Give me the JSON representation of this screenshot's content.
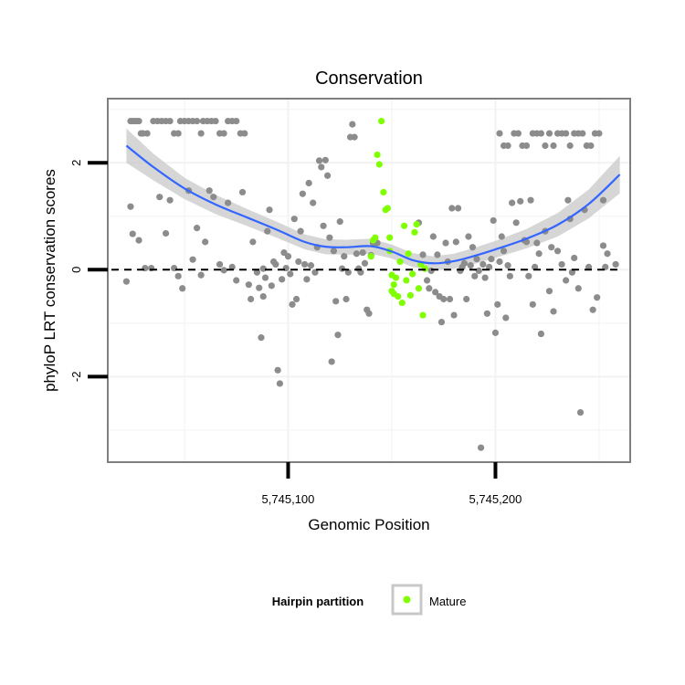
{
  "chart_data": {
    "type": "scatter",
    "title": "Conservation",
    "xlabel": "Genomic Position",
    "ylabel": "phyloP LRT conservation scores",
    "xlim": [
      5745013,
      5745265
    ],
    "ylim": [
      -3.6,
      3.2
    ],
    "x_ticks": [
      {
        "value": 5745100,
        "label": "5,745,100"
      },
      {
        "value": 5745200,
        "label": "5,745,200"
      }
    ],
    "y_ticks": [
      {
        "value": 2,
        "label": "2"
      },
      {
        "value": 0,
        "label": "0"
      },
      {
        "value": -2,
        "label": "-2"
      }
    ],
    "grid": true,
    "reference_line": {
      "y": 0,
      "style": "dashed"
    },
    "smooth_line_color": "#3366ff",
    "confidence_band_color": "#c8c8c8",
    "background_points_color": "#8c8c8c",
    "legend": {
      "title": "Hairpin partition",
      "position": "bottom",
      "entries": [
        {
          "label": "Mature",
          "color": "#7fff00"
        }
      ]
    },
    "series": [
      {
        "name": "",
        "color": "#8c8c8c",
        "points": [
          [
            5745024,
            2.78
          ],
          [
            5745025,
            2.78
          ],
          [
            5745026,
            2.78
          ],
          [
            5745027,
            2.78
          ],
          [
            5745028,
            2.78
          ],
          [
            5745029,
            2.55
          ],
          [
            5745030,
            2.55
          ],
          [
            5745032,
            2.55
          ],
          [
            5745035,
            2.78
          ],
          [
            5745037,
            2.78
          ],
          [
            5745039,
            2.78
          ],
          [
            5745041,
            2.78
          ],
          [
            5745043,
            2.78
          ],
          [
            5745045,
            2.55
          ],
          [
            5745047,
            2.55
          ],
          [
            5745048,
            2.78
          ],
          [
            5745050,
            2.78
          ],
          [
            5745052,
            2.78
          ],
          [
            5745054,
            2.78
          ],
          [
            5745056,
            2.78
          ],
          [
            5745058,
            2.55
          ],
          [
            5745059,
            2.78
          ],
          [
            5745061,
            2.78
          ],
          [
            5745063,
            2.78
          ],
          [
            5745065,
            2.78
          ],
          [
            5745067,
            2.55
          ],
          [
            5745069,
            2.55
          ],
          [
            5745071,
            2.78
          ],
          [
            5745073,
            2.78
          ],
          [
            5745075,
            2.78
          ],
          [
            5745077,
            2.55
          ],
          [
            5745079,
            2.55
          ],
          [
            5745024,
            1.18
          ],
          [
            5745025,
            0.67
          ],
          [
            5745028,
            0.55
          ],
          [
            5745031,
            0.03
          ],
          [
            5745034,
            0.03
          ],
          [
            5745022,
            -0.22
          ],
          [
            5745038,
            1.36
          ],
          [
            5745041,
            0.68
          ],
          [
            5745043,
            1.3
          ],
          [
            5745045,
            0.03
          ],
          [
            5745047,
            -0.12
          ],
          [
            5745049,
            -0.35
          ],
          [
            5745052,
            1.48
          ],
          [
            5745054,
            0.19
          ],
          [
            5745056,
            0.78
          ],
          [
            5745058,
            -0.1
          ],
          [
            5745060,
            0.52
          ],
          [
            5745062,
            1.48
          ],
          [
            5745064,
            1.36
          ],
          [
            5745067,
            0.1
          ],
          [
            5745069,
            -0.01
          ],
          [
            5745071,
            1.25
          ],
          [
            5745073,
            0.05
          ],
          [
            5745075,
            -0.2
          ],
          [
            5745078,
            1.45
          ],
          [
            5745081,
            -0.28
          ],
          [
            5745082,
            -0.55
          ],
          [
            5745083,
            0.52
          ],
          [
            5745085,
            -0.05
          ],
          [
            5745086,
            -0.34
          ],
          [
            5745087,
            -1.27
          ],
          [
            5745088,
            0.02
          ],
          [
            5745088,
            -0.5
          ],
          [
            5745089,
            -0.15
          ],
          [
            5745090,
            0.72
          ],
          [
            5745091,
            1.12
          ],
          [
            5745092,
            -0.3
          ],
          [
            5745093,
            0.15
          ],
          [
            5745094,
            0.1
          ],
          [
            5745095,
            -1.88
          ],
          [
            5745096,
            -2.13
          ],
          [
            5745097,
            -0.18
          ],
          [
            5745098,
            0.32
          ],
          [
            5745099,
            0.03
          ],
          [
            5745100,
            0.25
          ],
          [
            5745101,
            -0.08
          ],
          [
            5745102,
            -0.65
          ],
          [
            5745103,
            0.95
          ],
          [
            5745104,
            -0.55
          ],
          [
            5745105,
            0.15
          ],
          [
            5745106,
            0.72
          ],
          [
            5745107,
            1.42
          ],
          [
            5745108,
            0.1
          ],
          [
            5745109,
            -0.18
          ],
          [
            5745110,
            1.62
          ],
          [
            5745111,
            0.08
          ],
          [
            5745112,
            1.25
          ],
          [
            5745113,
            -0.05
          ],
          [
            5745114,
            0.42
          ],
          [
            5745115,
            2.04
          ],
          [
            5745116,
            1.92
          ],
          [
            5745117,
            0.82
          ],
          [
            5745118,
            2.05
          ],
          [
            5745119,
            1.76
          ],
          [
            5745120,
            0.6
          ],
          [
            5745121,
            -1.72
          ],
          [
            5745122,
            0.35
          ],
          [
            5745123,
            -0.59
          ],
          [
            5745124,
            -1.22
          ],
          [
            5745125,
            0.9
          ],
          [
            5745126,
            0.02
          ],
          [
            5745127,
            0.25
          ],
          [
            5745128,
            -0.55
          ],
          [
            5745129,
            -0.05
          ],
          [
            5745130,
            2.48
          ],
          [
            5745131,
            2.72
          ],
          [
            5745132,
            2.48
          ],
          [
            5745133,
            0.3
          ],
          [
            5745134,
            0.02
          ],
          [
            5745135,
            -0.05
          ],
          [
            5745136,
            0.32
          ],
          [
            5745137,
            0.12
          ],
          [
            5745138,
            -0.75
          ],
          [
            5745139,
            -0.82
          ],
          [
            5745140,
            0.27
          ],
          [
            5745141,
            0.5
          ],
          [
            5745143,
            0.5
          ],
          [
            5745163,
            0.88
          ],
          [
            5745165,
            0.28
          ],
          [
            5745167,
            -0.2
          ],
          [
            5745168,
            -0.35
          ],
          [
            5745169,
            -0.02
          ],
          [
            5745170,
            0.62
          ],
          [
            5745171,
            -0.42
          ],
          [
            5745172,
            0.28
          ],
          [
            5745173,
            -0.5
          ],
          [
            5745174,
            -0.98
          ],
          [
            5745175,
            -0.55
          ],
          [
            5745176,
            0.5
          ],
          [
            5745177,
            0.15
          ],
          [
            5745178,
            -0.55
          ],
          [
            5745179,
            1.15
          ],
          [
            5745180,
            -0.85
          ],
          [
            5745181,
            0.52
          ],
          [
            5745182,
            1.15
          ],
          [
            5745183,
            -0.02
          ],
          [
            5745184,
            0.05
          ],
          [
            5745185,
            0.12
          ],
          [
            5745186,
            -0.55
          ],
          [
            5745187,
            0.62
          ],
          [
            5745188,
            0.08
          ],
          [
            5745189,
            0.42
          ],
          [
            5745190,
            -0.12
          ],
          [
            5745191,
            0.2
          ],
          [
            5745192,
            -0.02
          ],
          [
            5745193,
            -3.33
          ],
          [
            5745194,
            0.1
          ],
          [
            5745195,
            -0.15
          ],
          [
            5745196,
            -0.82
          ],
          [
            5745197,
            0.05
          ],
          [
            5745198,
            0.2
          ],
          [
            5745199,
            0.92
          ],
          [
            5745200,
            -1.18
          ],
          [
            5745201,
            -0.65
          ],
          [
            5745202,
            0.15
          ],
          [
            5745203,
            0.62
          ],
          [
            5745204,
            0.35
          ],
          [
            5745205,
            -0.9
          ],
          [
            5745206,
            0.08
          ],
          [
            5745207,
            -0.12
          ],
          [
            5745208,
            1.25
          ],
          [
            5745210,
            0.88
          ],
          [
            5745212,
            1.28
          ],
          [
            5745214,
            0.55
          ],
          [
            5745215,
            0.52
          ],
          [
            5745216,
            -0.12
          ],
          [
            5745217,
            1.3
          ],
          [
            5745218,
            -0.65
          ],
          [
            5745219,
            0.05
          ],
          [
            5745220,
            0.5
          ],
          [
            5745221,
            0.3
          ],
          [
            5745222,
            -1.2
          ],
          [
            5745224,
            0.72
          ],
          [
            5745226,
            -0.4
          ],
          [
            5745227,
            0.42
          ],
          [
            5745228,
            -0.78
          ],
          [
            5745230,
            0.35
          ],
          [
            5745232,
            0.1
          ],
          [
            5745234,
            -0.2
          ],
          [
            5745235,
            1.3
          ],
          [
            5745236,
            0.95
          ],
          [
            5745237,
            -0.05
          ],
          [
            5745238,
            0.22
          ],
          [
            5745240,
            -0.35
          ],
          [
            5745241,
            -2.67
          ],
          [
            5745243,
            1.12
          ],
          [
            5745245,
            0.05
          ],
          [
            5745247,
            -0.75
          ],
          [
            5745249,
            -0.52
          ],
          [
            5745252,
            0.45
          ],
          [
            5745253,
            0.05
          ],
          [
            5745254,
            0.3
          ],
          [
            5745252,
            1.3
          ],
          [
            5745258,
            0.1
          ],
          [
            5745202,
            2.55
          ],
          [
            5745204,
            2.32
          ],
          [
            5745206,
            2.32
          ],
          [
            5745209,
            2.55
          ],
          [
            5745211,
            2.55
          ],
          [
            5745213,
            2.32
          ],
          [
            5745215,
            2.32
          ],
          [
            5745218,
            2.55
          ],
          [
            5745220,
            2.55
          ],
          [
            5745222,
            2.55
          ],
          [
            5745224,
            2.32
          ],
          [
            5745226,
            2.55
          ],
          [
            5745228,
            2.32
          ],
          [
            5745230,
            2.55
          ],
          [
            5745232,
            2.55
          ],
          [
            5745234,
            2.55
          ],
          [
            5745236,
            2.32
          ],
          [
            5745238,
            2.55
          ],
          [
            5745240,
            2.55
          ],
          [
            5745242,
            2.55
          ],
          [
            5745244,
            2.32
          ],
          [
            5745246,
            2.32
          ],
          [
            5745248,
            2.55
          ],
          [
            5745250,
            2.55
          ]
        ]
      },
      {
        "name": "Mature",
        "color": "#7fff00",
        "points": [
          [
            5745140,
            0.25
          ],
          [
            5745141,
            0.55
          ],
          [
            5745142,
            0.6
          ],
          [
            5745143,
            2.15
          ],
          [
            5745144,
            1.97
          ],
          [
            5745145,
            2.78
          ],
          [
            5745146,
            1.45
          ],
          [
            5745147,
            1.12
          ],
          [
            5745148,
            1.15
          ],
          [
            5745149,
            0.6
          ],
          [
            5745150,
            -0.4
          ],
          [
            5745151,
            -0.28
          ],
          [
            5745152,
            -0.15
          ],
          [
            5745153,
            -0.5
          ],
          [
            5745154,
            0.15
          ],
          [
            5745155,
            -0.62
          ],
          [
            5745156,
            0.82
          ],
          [
            5745157,
            -0.2
          ],
          [
            5745158,
            0.3
          ],
          [
            5745159,
            -0.48
          ],
          [
            5745160,
            -0.08
          ],
          [
            5745161,
            0.7
          ],
          [
            5745162,
            0.85
          ],
          [
            5745163,
            -0.35
          ],
          [
            5745164,
            0.1
          ],
          [
            5745165,
            -0.85
          ],
          [
            5745166,
            0.02
          ],
          [
            5745149,
            0.35
          ],
          [
            5745150,
            -0.1
          ],
          [
            5745151,
            -0.45
          ]
        ]
      }
    ],
    "trend": {
      "x": [
        5745022,
        5745035,
        5745050,
        5745065,
        5745080,
        5745095,
        5745108,
        5745118,
        5745128,
        5745140,
        5745150,
        5745160,
        5745170,
        5745180,
        5745190,
        5745200,
        5745215,
        5745230,
        5745245,
        5745260
      ],
      "y": [
        2.32,
        1.92,
        1.52,
        1.22,
        0.98,
        0.74,
        0.52,
        0.43,
        0.42,
        0.44,
        0.34,
        0.18,
        0.12,
        0.16,
        0.26,
        0.38,
        0.58,
        0.84,
        1.23,
        1.78
      ],
      "band_half_width": [
        0.32,
        0.25,
        0.2,
        0.18,
        0.16,
        0.15,
        0.14,
        0.14,
        0.14,
        0.14,
        0.13,
        0.13,
        0.13,
        0.14,
        0.15,
        0.16,
        0.18,
        0.22,
        0.27,
        0.35
      ]
    }
  }
}
